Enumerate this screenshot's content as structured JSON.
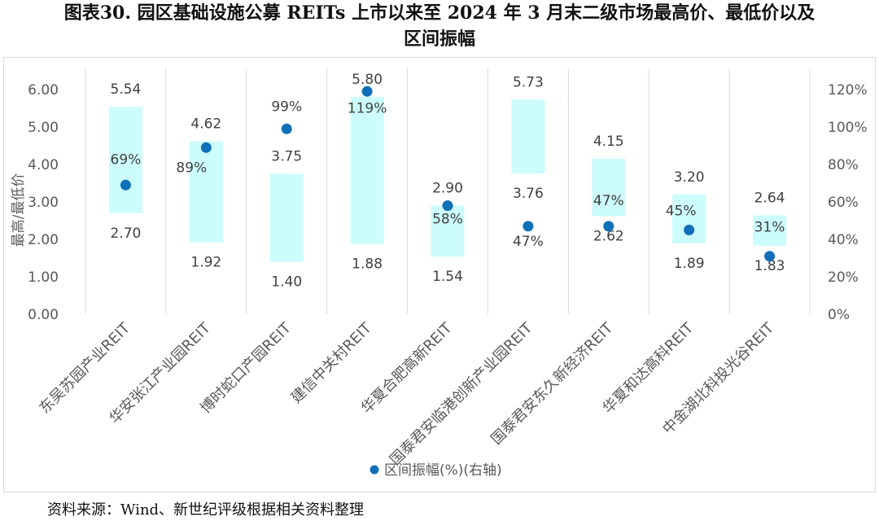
{
  "title": {
    "line1": "图表30. 园区基础设施公募 REITs 上市以来至 2024 年 3 月末二级市场最高价、最低价以及",
    "line2": "区间振幅"
  },
  "source": "资料来源：Wind、新世纪评级根据相关资料整理",
  "colors": {
    "bar": "#ccfcfc",
    "dot": "#0f6fb8",
    "grid": "#d9d9d9",
    "axis_text": "#595959"
  },
  "chart_data": {
    "type": "floating-bar+scatter",
    "categories": [
      "东吴苏园产业REIT",
      "华安张江产业园REIT",
      "博时蛇口产园REIT",
      "建信中关村REIT",
      "华夏合肥高新REIT",
      "国泰君安临港创新产业园REIT",
      "国泰君安东久新经济REIT",
      "华夏和达高科REIT",
      "中金湖北科投光谷REIT"
    ],
    "series": [
      {
        "name": "",
        "role": "high",
        "values": [
          5.54,
          4.62,
          3.75,
          5.8,
          2.9,
          5.73,
          4.15,
          3.2,
          2.64
        ],
        "labels": [
          "5.54",
          "4.62",
          "3.75",
          "5.80",
          "2.90",
          "5.73",
          "4.15",
          "3.20",
          "2.64"
        ]
      },
      {
        "name": "",
        "role": "low",
        "values": [
          2.7,
          1.92,
          1.4,
          1.88,
          1.54,
          3.76,
          2.62,
          1.89,
          1.83
        ],
        "labels": [
          "2.70",
          "1.92",
          "1.40",
          "1.88",
          "1.54",
          "3.76",
          "2.62",
          "1.89",
          "1.83"
        ]
      },
      {
        "name": "区间振幅(%)(右轴)",
        "role": "amplitude",
        "axis": "right",
        "values": [
          69,
          89,
          99,
          119,
          58,
          47,
          47,
          45,
          31
        ],
        "labels": [
          "69%",
          "89%",
          "99%",
          "119%",
          "58%",
          "47%",
          "47%",
          "45%",
          "31%"
        ]
      }
    ],
    "ylabel": "最高/最低价",
    "y_left": {
      "min": 0,
      "max": 6,
      "ticks": [
        "0.00",
        "1.00",
        "2.00",
        "3.00",
        "4.00",
        "5.00",
        "6.00"
      ]
    },
    "y_right": {
      "min": 0,
      "max": 120,
      "ticks": [
        "0%",
        "20%",
        "40%",
        "60%",
        "80%",
        "100%",
        "120%"
      ]
    },
    "grid": "vertical category separators",
    "legend": "bottom-center"
  }
}
